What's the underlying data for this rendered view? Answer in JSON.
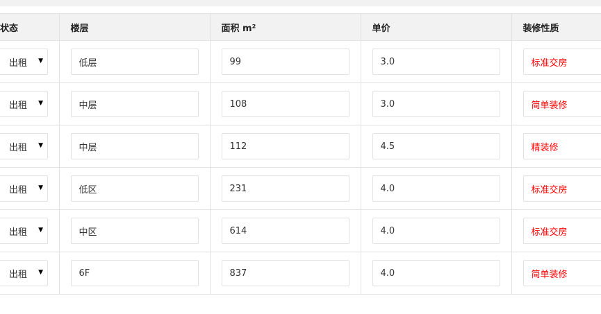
{
  "headers": [
    "状态",
    "楼层",
    "面积 m²",
    "单价",
    "装修性质"
  ],
  "rows": [
    {
      "status": "出租",
      "floor": "低层",
      "area": "99",
      "price": "3.0",
      "decoration": "标准交房"
    },
    {
      "status": "出租",
      "floor": "中层",
      "area": "108",
      "price": "3.0",
      "decoration": "简单装修"
    },
    {
      "status": "出租",
      "floor": "中层",
      "area": "112",
      "price": "4.5",
      "decoration": "精装修"
    },
    {
      "status": "出租",
      "floor": "低区",
      "area": "231",
      "price": "4.0",
      "decoration": "标准交房"
    },
    {
      "status": "出租",
      "floor": "中区",
      "area": "614",
      "price": "4.0",
      "decoration": "标准交房"
    },
    {
      "status": "出租",
      "floor": "6F",
      "area": "837",
      "price": "4.0",
      "decoration": "简单装修"
    }
  ],
  "colors": {
    "decoration_text": "#ff0000",
    "header_bg": "#f2f2f2"
  },
  "icons": {
    "select_arrow": "triangle-down-icon"
  }
}
